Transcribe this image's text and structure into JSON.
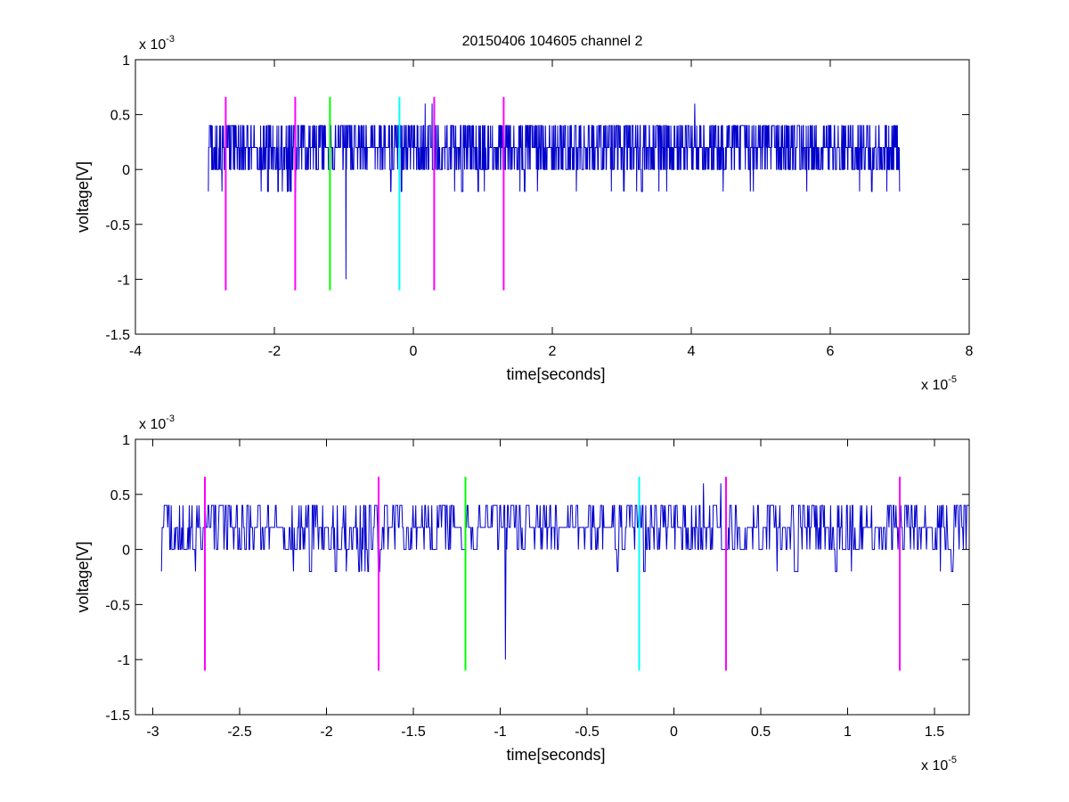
{
  "figure_title": "20150406 104605 channel 2",
  "chart_data": [
    {
      "type": "line",
      "title": "20150406 104605 channel 2",
      "xlabel": "time[seconds]",
      "ylabel": "voltage[V]",
      "xlim": [
        -4e-05,
        8e-05
      ],
      "ylim": [
        -0.0015,
        0.001
      ],
      "x_ticks": [
        -4e-05,
        -2e-05,
        0,
        2e-05,
        4e-05,
        6e-05,
        8e-05
      ],
      "x_tick_labels": [
        "-4",
        "-2",
        "0",
        "2",
        "4",
        "6",
        "8"
      ],
      "y_ticks": [
        0.001,
        0.0005,
        0,
        -0.0005,
        -0.001,
        -0.0015
      ],
      "y_tick_labels": [
        "1",
        "0.5",
        "0",
        "-0.5",
        "-1",
        "-1.5"
      ],
      "x_exponent": {
        "base": "x 10",
        "exp": "-5"
      },
      "y_exponent": {
        "base": "x 10",
        "exp": "-3"
      },
      "grid": false,
      "series": [
        {
          "color": "#0000cc",
          "x_start": -2.95e-05,
          "x_step": 4e-08,
          "quantum": 0.0002,
          "baseline": 0.0002,
          "features": [
            {
              "x": -2.95e-05,
              "y": -0.0002
            },
            {
              "x": -9.7e-06,
              "y": -0.001
            },
            {
              "x": -1.95e-05,
              "y": -0.0002
            },
            {
              "x": -1.7e-05,
              "y": -0.0002
            },
            {
              "x": 1.7e-06,
              "y": 0.0006
            },
            {
              "x": 2.7e-06,
              "y": 0.0006
            },
            {
              "x": 4.05e-05,
              "y": 0.0006
            },
            {
              "x": 1.6e-05,
              "y": -0.0002
            },
            {
              "x": 2.85e-05,
              "y": -0.0002
            },
            {
              "x": 6.6e-05,
              "y": -0.0002
            },
            {
              "x": 7e-05,
              "y": -0.0002
            }
          ],
          "range_y": [
            -0.001,
            0.0006
          ],
          "x_end": 7e-05
        }
      ],
      "markers": [
        {
          "x": -2.7e-05,
          "color": "#ff00ff",
          "y_range": [
            -0.0011,
            0.00066
          ]
        },
        {
          "x": -1.7e-05,
          "color": "#ff00ff",
          "y_range": [
            -0.0011,
            0.00066
          ]
        },
        {
          "x": -1.2e-05,
          "color": "#00ff00",
          "y_range": [
            -0.0011,
            0.00066
          ]
        },
        {
          "x": -2e-06,
          "color": "#00ffff",
          "y_range": [
            -0.0011,
            0.00066
          ]
        },
        {
          "x": 3e-06,
          "color": "#ff00ff",
          "y_range": [
            -0.0011,
            0.00066
          ]
        },
        {
          "x": 1.3e-05,
          "color": "#ff00ff",
          "y_range": [
            -0.0011,
            0.00066
          ]
        }
      ]
    },
    {
      "type": "line",
      "title": "",
      "xlabel": "time[seconds]",
      "ylabel": "voltage[V]",
      "xlim": [
        -3.1e-05,
        1.7e-05
      ],
      "ylim": [
        -0.0015,
        0.001
      ],
      "x_ticks": [
        -3e-05,
        -2.5e-05,
        -2e-05,
        -1.5e-05,
        -1e-05,
        -5e-06,
        0,
        5e-06,
        1e-05,
        1.5e-05
      ],
      "x_tick_labels": [
        "-3",
        "-2.5",
        "-2",
        "-1.5",
        "-1",
        "-0.5",
        "0",
        "0.5",
        "1",
        "1.5"
      ],
      "y_ticks": [
        0.001,
        0.0005,
        0,
        -0.0005,
        -0.001,
        -0.0015
      ],
      "y_tick_labels": [
        "1",
        "0.5",
        "0",
        "-0.5",
        "-1",
        "-1.5"
      ],
      "x_exponent": {
        "base": "x 10",
        "exp": "-5"
      },
      "y_exponent": {
        "base": "x 10",
        "exp": "-3"
      },
      "grid": false,
      "series": [
        {
          "color": "#0000cc",
          "x_start": -2.95e-05,
          "x_step": 4e-08,
          "quantum": 0.0002,
          "baseline": 0.0002,
          "features": [
            {
              "x": -2.95e-05,
              "y": -0.0002
            },
            {
              "x": -9.7e-06,
              "y": -0.001
            },
            {
              "x": -1.95e-05,
              "y": -0.0002
            },
            {
              "x": -1.7e-05,
              "y": -0.0002
            },
            {
              "x": 1.7e-06,
              "y": 0.0006
            },
            {
              "x": 2.7e-06,
              "y": 0.0006
            },
            {
              "x": 1.6e-05,
              "y": -0.0002
            }
          ],
          "range_y": [
            -0.001,
            0.0006
          ],
          "x_end": 1.7e-05
        }
      ],
      "markers": [
        {
          "x": -2.7e-05,
          "color": "#ff00ff",
          "y_range": [
            -0.0011,
            0.00066
          ]
        },
        {
          "x": -1.7e-05,
          "color": "#ff00ff",
          "y_range": [
            -0.0011,
            0.00066
          ]
        },
        {
          "x": -1.2e-05,
          "color": "#00ff00",
          "y_range": [
            -0.0011,
            0.00066
          ]
        },
        {
          "x": -2e-06,
          "color": "#00ffff",
          "y_range": [
            -0.0011,
            0.00066
          ]
        },
        {
          "x": 3e-06,
          "color": "#ff00ff",
          "y_range": [
            -0.0011,
            0.00066
          ]
        },
        {
          "x": 1.3e-05,
          "color": "#ff00ff",
          "y_range": [
            -0.0011,
            0.00066
          ]
        }
      ]
    }
  ]
}
